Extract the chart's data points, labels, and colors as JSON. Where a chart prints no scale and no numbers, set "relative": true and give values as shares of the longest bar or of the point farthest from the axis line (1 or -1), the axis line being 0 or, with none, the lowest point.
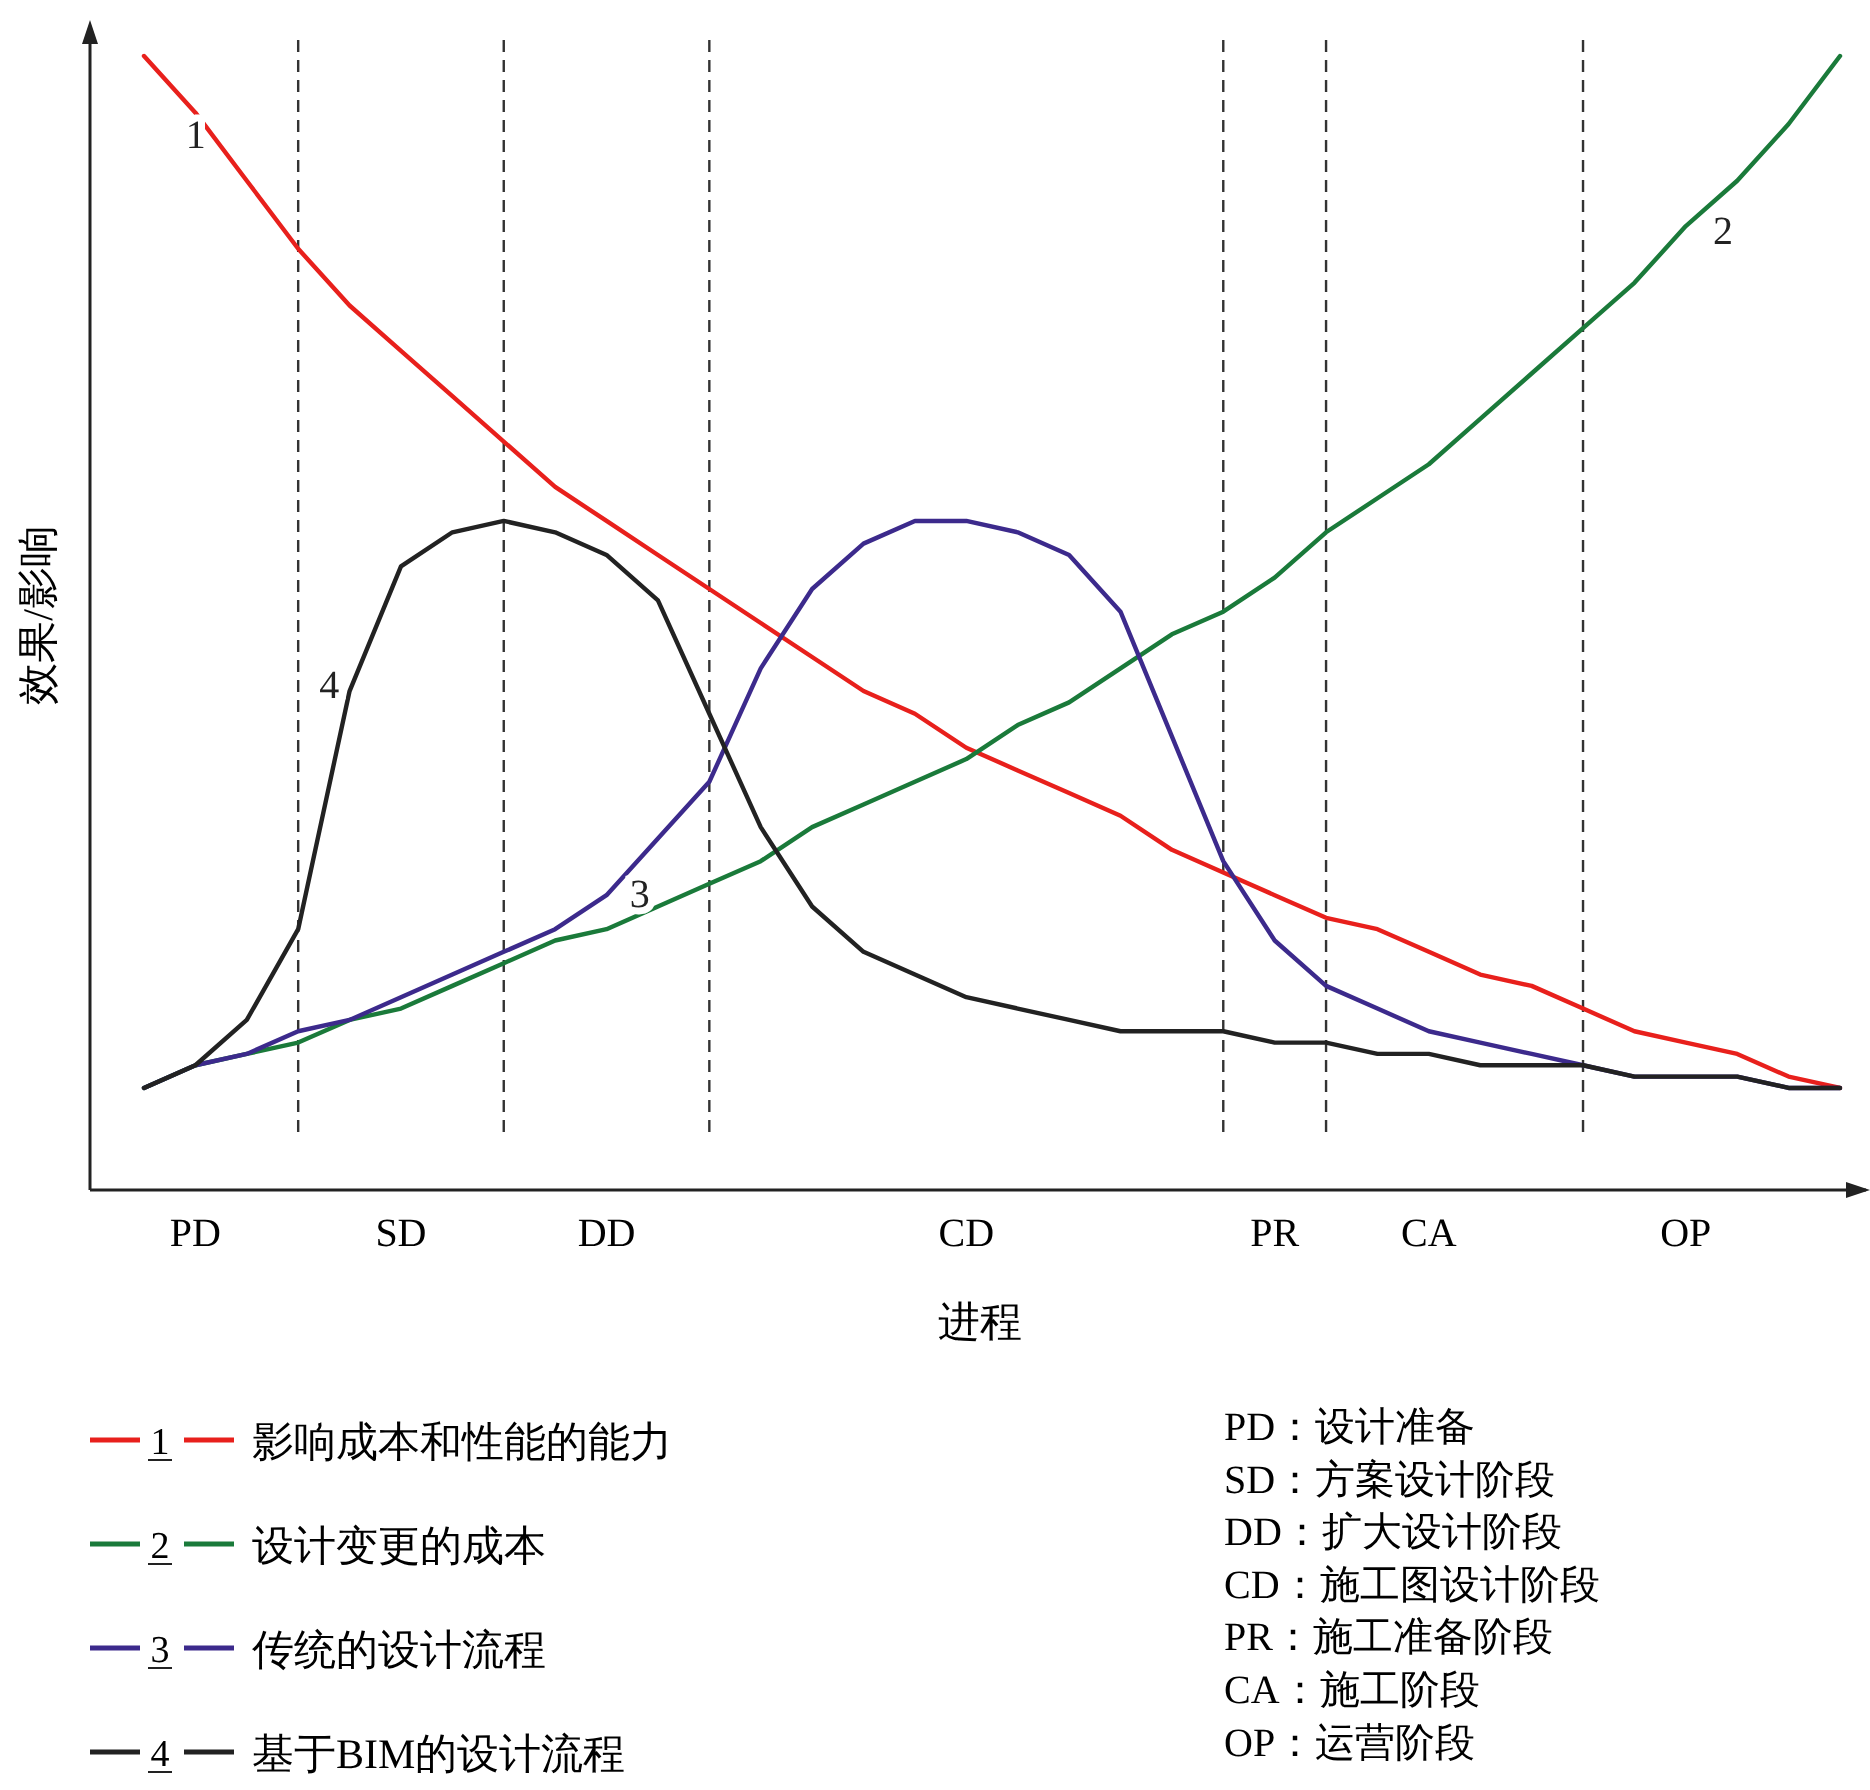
{
  "chart_data": {
    "type": "line",
    "relative": true,
    "xlabel": "进程",
    "ylabel": "效果/影响",
    "legend": "bottom",
    "line_style": "solid",
    "categories": [
      null,
      "PD",
      null,
      null,
      null,
      "SD",
      null,
      null,
      null,
      "DD",
      null,
      null,
      null,
      null,
      null,
      null,
      "CD",
      null,
      null,
      null,
      null,
      null,
      "PR",
      null,
      null,
      "CA",
      null,
      null,
      null,
      null,
      "OP",
      null,
      null,
      null
    ],
    "series": [
      {
        "name": "影响成本和性能的能力",
        "color": "#e8201c",
        "values": [
          1.0,
          0.95,
          0.89,
          0.83,
          0.78,
          0.74,
          0.7,
          0.66,
          0.62,
          0.59,
          0.56,
          0.53,
          0.5,
          0.47,
          0.44,
          0.42,
          0.39,
          0.37,
          0.35,
          0.33,
          0.3,
          0.28,
          0.26,
          0.24,
          0.23,
          0.21,
          0.19,
          0.18,
          0.16,
          0.14,
          0.13,
          0.12,
          0.1,
          0.09
        ]
      },
      {
        "name": "设计变更的成本",
        "color": "#1a7a3a",
        "values": [
          0.09,
          0.11,
          0.12,
          0.13,
          0.15,
          0.16,
          0.18,
          0.2,
          0.22,
          0.23,
          0.25,
          0.27,
          0.29,
          0.32,
          0.34,
          0.36,
          0.38,
          0.41,
          0.43,
          0.46,
          0.49,
          0.51,
          0.54,
          0.58,
          0.61,
          0.64,
          0.68,
          0.72,
          0.76,
          0.8,
          0.85,
          0.89,
          0.94,
          1.0
        ]
      },
      {
        "name": "传统的设计流程",
        "color": "#3c2a8c",
        "values": [
          0.09,
          0.11,
          0.12,
          0.14,
          0.15,
          0.17,
          0.19,
          0.21,
          0.23,
          0.26,
          0.31,
          0.36,
          0.46,
          0.53,
          0.57,
          0.59,
          0.59,
          0.58,
          0.56,
          0.51,
          0.4,
          0.29,
          0.22,
          0.18,
          0.16,
          0.14,
          0.13,
          0.12,
          0.11,
          0.1,
          0.1,
          0.1,
          0.09,
          0.09
        ]
      },
      {
        "name": "基于BIM的设计流程",
        "color": "#222222",
        "values": [
          0.09,
          0.11,
          0.15,
          0.23,
          0.44,
          0.55,
          0.58,
          0.59,
          0.58,
          0.56,
          0.52,
          0.42,
          0.32,
          0.25,
          0.21,
          0.19,
          0.17,
          0.16,
          0.15,
          0.14,
          0.14,
          0.14,
          0.13,
          0.13,
          0.12,
          0.12,
          0.11,
          0.11,
          0.11,
          0.1,
          0.1,
          0.1,
          0.09,
          0.09
        ]
      }
    ],
    "grid": "x",
    "annotations": [
      "1",
      "2",
      "3",
      "4",
      "PD：设计准备",
      "SD：方案设计阶段",
      "DD：扩大设计阶段",
      "CD：施工图设计阶段",
      "PR：施工准备阶段",
      "CA：施工阶段",
      "OP：运营阶段"
    ]
  }
}
